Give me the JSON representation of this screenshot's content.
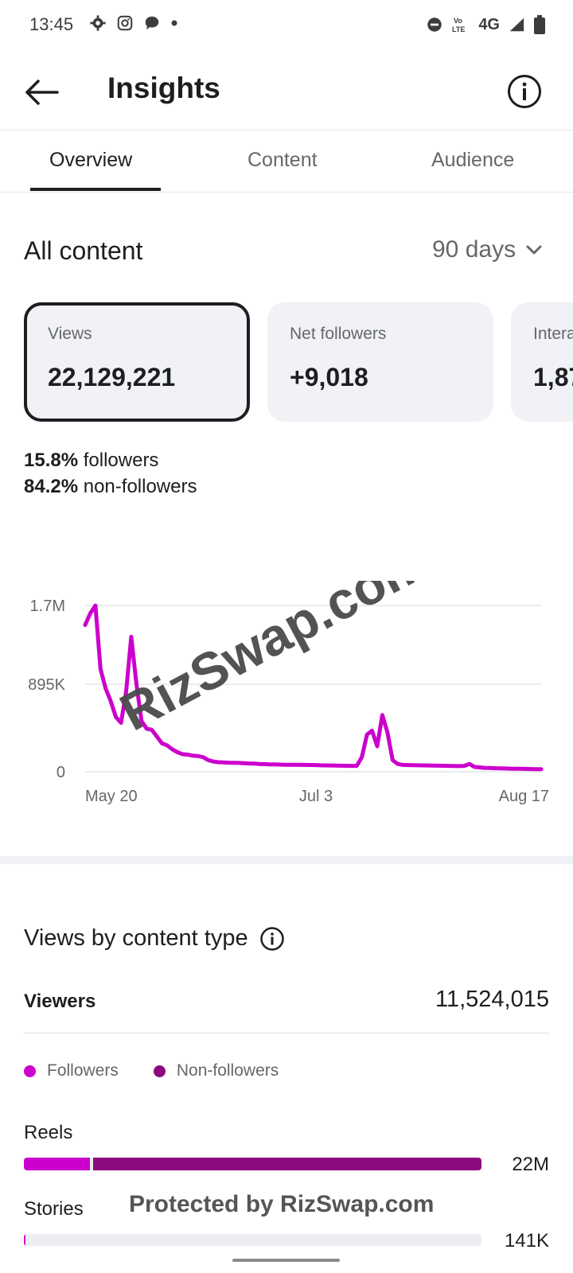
{
  "status_bar": {
    "time": "13:45",
    "network": "4G",
    "icons": [
      "settings-gear-icon",
      "instagram-icon",
      "chat-bubble-icon",
      "notification-dot-icon",
      "do-not-disturb-icon",
      "volte-icon",
      "signal-icon",
      "battery-icon"
    ]
  },
  "header": {
    "title": "Insights",
    "back_icon": "arrow-left-icon",
    "info_icon": "info-icon"
  },
  "tabs": [
    {
      "label": "Overview",
      "active": true
    },
    {
      "label": "Content",
      "active": false
    },
    {
      "label": "Audience",
      "active": false
    }
  ],
  "section": {
    "title": "All content",
    "range": "90 days"
  },
  "metrics": [
    {
      "label": "Views",
      "value": "22,129,221",
      "selected": true
    },
    {
      "label": "Net followers",
      "value": "+9,018",
      "selected": false
    },
    {
      "label": "Interactions",
      "value": "1,87",
      "selected": false
    }
  ],
  "breakdown": {
    "followers_pct": "15.8%",
    "followers_label": "followers",
    "nonfollowers_pct": "84.2%",
    "nonfollowers_label": "non-followers"
  },
  "chart_data": {
    "type": "line",
    "y_ticks": [
      "1.7M",
      "895K",
      "0"
    ],
    "x_ticks": [
      "May 20",
      "Jul 3",
      "Aug 17"
    ],
    "ylim": [
      0,
      1790000
    ],
    "line_color": "#cc00cc",
    "watermark": "RizSwap.com",
    "series": [
      {
        "values": [
          1500000,
          1620000,
          1700000,
          1050000,
          850000,
          720000,
          560000,
          500000,
          820000,
          1380000,
          900000,
          520000,
          440000,
          430000,
          360000,
          290000,
          270000,
          230000,
          200000,
          180000,
          175000,
          165000,
          160000,
          150000,
          120000,
          105000,
          98000,
          95000,
          93000,
          92000,
          90000,
          88000,
          85000,
          83000,
          80000,
          78000,
          76000,
          75000,
          73000,
          72000,
          72000,
          71000,
          70000,
          70000,
          69000,
          68000,
          66000,
          65000,
          64000,
          63000,
          62000,
          61000,
          60000,
          60000,
          150000,
          380000,
          420000,
          260000,
          580000,
          400000,
          120000,
          80000,
          70000,
          68000,
          67000,
          66000,
          65000,
          64000,
          63000,
          62000,
          61000,
          60000,
          59000,
          58000,
          60000,
          80000,
          50000,
          45000,
          40000,
          38000,
          36000,
          34000,
          33000,
          32000,
          31000,
          30000,
          29000,
          28000,
          27000,
          26000
        ]
      }
    ]
  },
  "views_by_content_type": {
    "title": "Views by content type",
    "viewers_label": "Viewers",
    "viewers_value": "11,524,015",
    "legend": [
      {
        "label": "Followers",
        "color": "#cc00cc"
      },
      {
        "label": "Non-followers",
        "color": "#8b0a7f"
      }
    ],
    "types": [
      {
        "label": "Reels",
        "value": "22M",
        "followers_fraction": 0.145,
        "nonfollowers_fraction": 0.855
      },
      {
        "label": "Stories",
        "value": "141K",
        "followers_fraction": 0.004,
        "nonfollowers_fraction": 0.0
      }
    ]
  },
  "watermark_text": "Protected by RizSwap.com"
}
